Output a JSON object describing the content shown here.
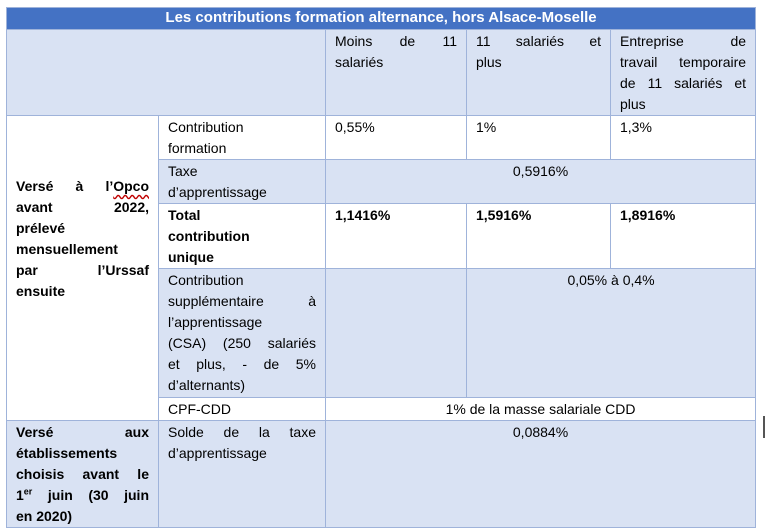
{
  "table": {
    "title": "Les contributions formation alternance, hors Alsace-Moselle",
    "columns": {
      "col1": [
        "Moins de 11",
        "salariés"
      ],
      "col2": [
        "11 salariés et",
        "plus"
      ],
      "col3": [
        "Entreprise de",
        "travail temporaire",
        "de 11 salariés et",
        "plus"
      ]
    },
    "group1": {
      "pre": "Versé à l’",
      "opco": "Opco",
      "lines": [
        "avant 2022,",
        "prélevé",
        "mensuellement",
        "par l’Urssaf",
        "ensuite"
      ]
    },
    "rows": {
      "contribution_formation": {
        "label": [
          "Contribution",
          "formation"
        ],
        "col1": "0,55%",
        "col2": "1%",
        "col3": "1,3%"
      },
      "taxe": {
        "label": [
          "Taxe",
          "d’apprentissage"
        ],
        "value": "0,5916%"
      },
      "total": {
        "label": [
          "Total",
          "contribution",
          "unique"
        ],
        "col1": "1,1416%",
        "col2": "1,5916%",
        "col3": "1,8916%"
      },
      "csa": {
        "label": [
          "Contribution",
          "supplémentaire à",
          "l’apprentissage",
          "(CSA) (250 salariés",
          "et plus, - de 5%",
          "d’alternants)"
        ],
        "value": "0,05% à 0,4%"
      },
      "cpf": {
        "label": "CPF-CDD",
        "value": "1% de la masse salariale CDD"
      }
    },
    "group2": {
      "lines": [
        "Versé aux",
        "établissements",
        "choisis avant le"
      ],
      "line4_pre": "1",
      "line4_sup": "er",
      "line4_post": " juin (30 juin",
      "line5": "en 2020)"
    },
    "solde": {
      "label": [
        "Solde de la taxe",
        "d’apprentissage"
      ],
      "value": "0,0884%"
    }
  }
}
